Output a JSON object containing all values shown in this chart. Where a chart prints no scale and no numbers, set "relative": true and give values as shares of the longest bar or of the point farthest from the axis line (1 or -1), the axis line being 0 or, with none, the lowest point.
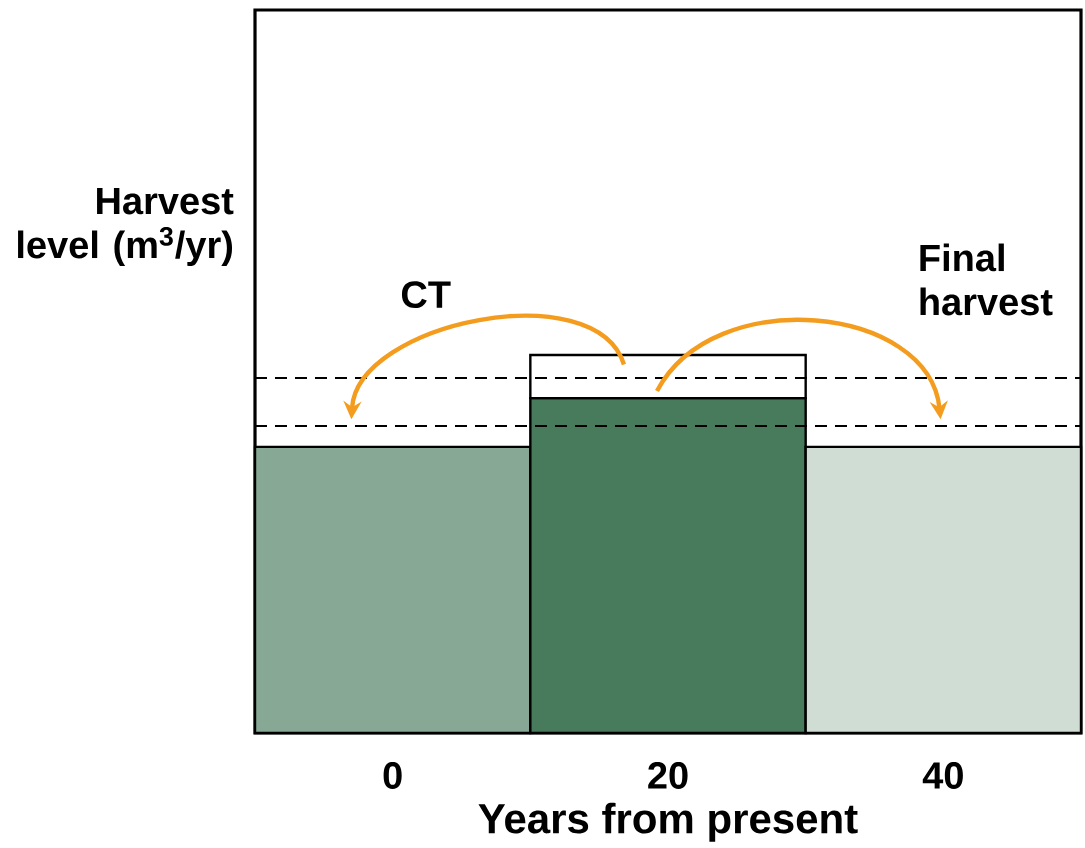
{
  "chart_data": {
    "type": "bar",
    "relative": true,
    "stacked": true,
    "xlabel": "Years from present",
    "ylabel": "Harvest level (m$^{3}$/yr)",
    "categories": [
      "0",
      "20",
      "40"
    ],
    "series": [
      {
        "colors": [
          "#86a894",
          "#487a5c",
          "#d0ddd4"
        ],
        "values": [
          0.757,
          0.886,
          0.757
        ]
      },
      {
        "color": "#ffffff",
        "values": [
          null,
          0.114,
          null
        ]
      }
    ],
    "ref_lines": [
      {
        "axis": "y",
        "value": 0.812,
        "color": "#000000",
        "line_style": "dashed"
      },
      {
        "axis": "y",
        "value": 0.939,
        "color": "#000000",
        "line_style": "dashed"
      }
    ],
    "annotations": [
      "CT",
      "Final harvest"
    ]
  }
}
